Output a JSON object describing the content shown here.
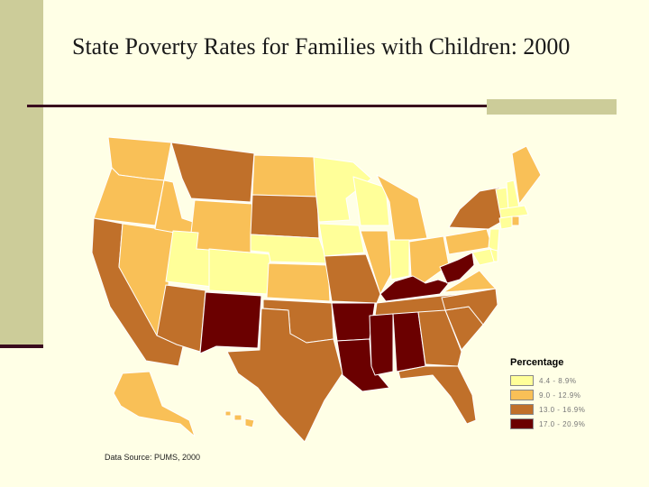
{
  "slide": {
    "title": "State Poverty Rates for Families with Children: 2000",
    "source": "Data Source: PUMS, 2000"
  },
  "legend": {
    "title": "Percentage",
    "items": [
      {
        "label": "4.4 - 8.9%",
        "color": "#FFFF99"
      },
      {
        "label": "9.0 - 12.9%",
        "color": "#F9C057"
      },
      {
        "label": "13.0 - 16.9%",
        "color": "#C0702A"
      },
      {
        "label": "17.0 - 20.9%",
        "color": "#6B0000"
      }
    ]
  },
  "states": {
    "WA": "medium",
    "OR": "medium",
    "CA": "high",
    "NV": "medium",
    "ID": "medium",
    "MT": "high",
    "WY": "medium",
    "UT": "low",
    "CO": "low",
    "AZ": "high",
    "NM": "highest",
    "ND": "medium",
    "SD": "high",
    "NE": "low",
    "KS": "medium",
    "OK": "high",
    "TX": "high",
    "MN": "low",
    "IA": "low",
    "MO": "high",
    "AR": "highest",
    "LA": "highest",
    "WI": "low",
    "IL": "medium",
    "MI": "medium",
    "IN": "low",
    "OH": "medium",
    "KY": "highest",
    "TN": "high",
    "MS": "highest",
    "AL": "highest",
    "GA": "high",
    "FL": "high",
    "SC": "high",
    "NC": "high",
    "VA": "medium",
    "WV": "highest",
    "PA": "medium",
    "NY": "high",
    "VT": "low",
    "NH": "low",
    "ME": "medium",
    "MA": "low",
    "CT": "low",
    "RI": "medium",
    "NJ": "low",
    "DE": "low",
    "MD": "low",
    "AK": "medium",
    "HI": "medium"
  },
  "colors": {
    "low": "#FFFF99",
    "medium": "#F9C057",
    "high": "#C0702A",
    "highest": "#6B0000"
  }
}
